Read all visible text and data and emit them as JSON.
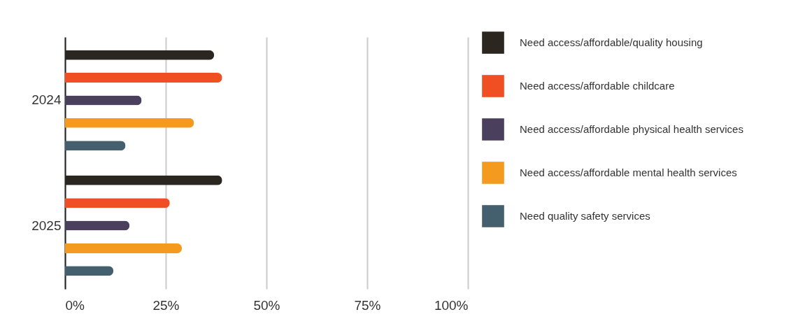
{
  "chart_data": {
    "type": "bar",
    "orientation": "horizontal",
    "categories": [
      "2024",
      "2025"
    ],
    "series": [
      {
        "name": "Need access/affordable/quality housing",
        "color": "#2b2620",
        "values": [
          37,
          39
        ]
      },
      {
        "name": "Need access/affordable childcare",
        "color": "#f04e23",
        "values": [
          39,
          26
        ]
      },
      {
        "name": "Need access/affordable physical health services",
        "color": "#4a3f5c",
        "values": [
          19,
          16
        ]
      },
      {
        "name": "Need access/affordable mental health services",
        "color": "#f39a1f",
        "values": [
          32,
          29
        ]
      },
      {
        "name": "Need quality safety services",
        "color": "#44606e",
        "values": [
          15,
          12
        ]
      }
    ],
    "xlim": [
      0,
      100
    ],
    "xticks": [
      {
        "value": 0,
        "label": "0%"
      },
      {
        "value": 25,
        "label": "25%"
      },
      {
        "value": 50,
        "label": "50%"
      },
      {
        "value": 75,
        "label": "75%"
      },
      {
        "value": 100,
        "label": "100%"
      }
    ],
    "grid": "x",
    "legend": "right"
  }
}
